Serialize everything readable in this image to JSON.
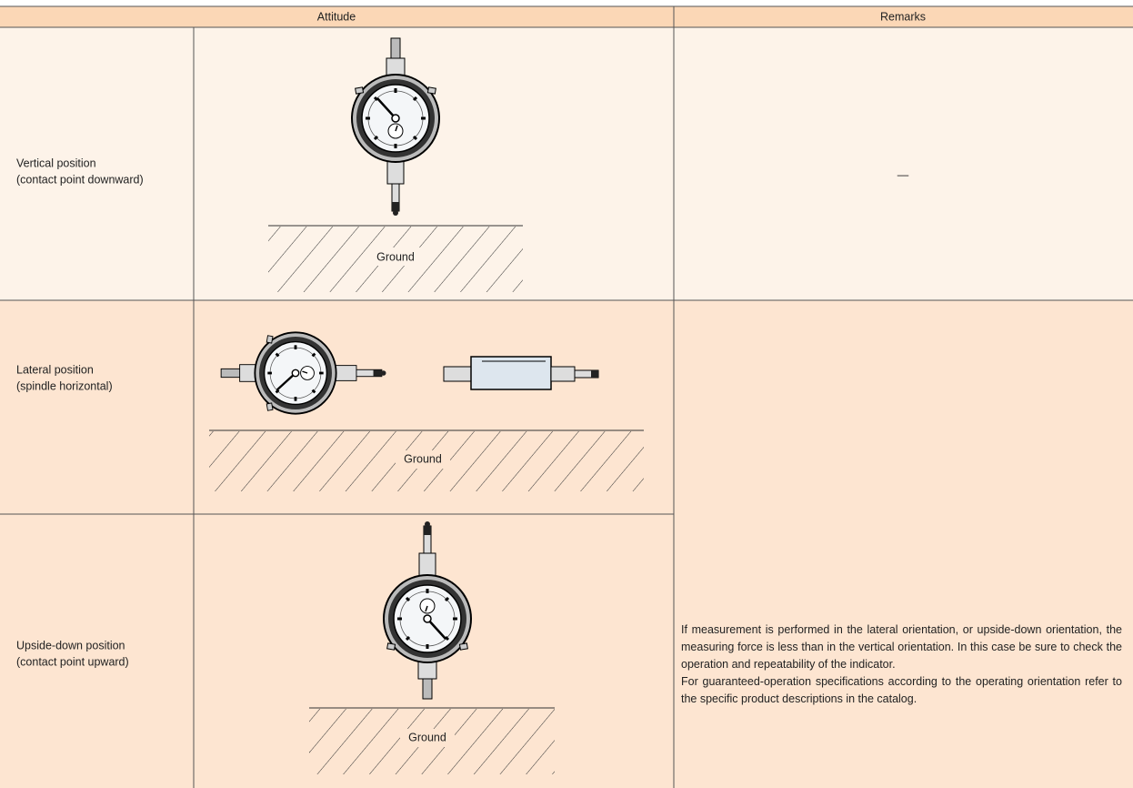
{
  "table": {
    "header": [
      "Attitude",
      "Remarks"
    ],
    "rows": [
      {
        "attitude": [
          "Vertical position",
          "(contact point downward)"
        ],
        "ground": "Ground",
        "remarks": "—"
      },
      {
        "attitude": [
          "Lateral position",
          "(spindle horizontal)"
        ],
        "ground": "Ground"
      },
      {
        "attitude": [
          "Upside-down position",
          "(contact point upward)"
        ],
        "ground": "Ground"
      }
    ],
    "shared_remarks": [
      "If measurement is performed in the lateral orientation, or upside-down orientation, the measuring force is less than in the vertical orientation. In this case be sure to check the operation and repeatability of the indicator.",
      "For guaranteed-operation specifications according to the operating orientation refer to the specific product descriptions in the catalog."
    ]
  }
}
